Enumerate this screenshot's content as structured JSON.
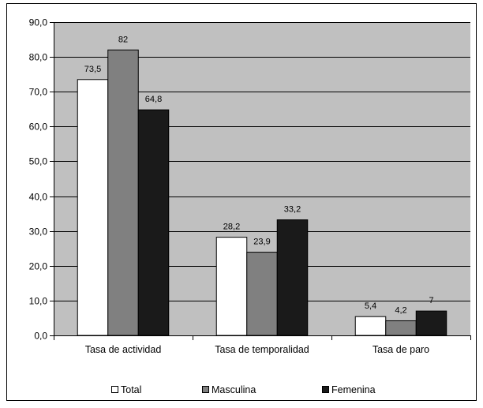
{
  "chart_data": {
    "type": "bar",
    "categories": [
      "Tasa de actividad",
      "Tasa de temporalidad",
      "Tasa de paro"
    ],
    "series": [
      {
        "name": "Total",
        "values": [
          73.5,
          28.2,
          5.4
        ],
        "labels": [
          "73,5",
          "28,2",
          "5,4"
        ],
        "color": "#ffffff"
      },
      {
        "name": "Masculina",
        "values": [
          82,
          23.9,
          4.2
        ],
        "labels": [
          "82",
          "23,9",
          "4,2"
        ],
        "color": "#808080"
      },
      {
        "name": "Femenina",
        "values": [
          64.8,
          33.2,
          7
        ],
        "labels": [
          "64,8",
          "33,2",
          "7"
        ],
        "color": "#1a1a1a"
      }
    ],
    "ylim": [
      0,
      90
    ],
    "yticks": [
      "0,0",
      "10,0",
      "20,0",
      "30,0",
      "40,0",
      "50,0",
      "60,0",
      "70,0",
      "80,0",
      "90,0"
    ],
    "grid": true,
    "legend": "bottom",
    "plot_background": "#c0c0c0"
  }
}
